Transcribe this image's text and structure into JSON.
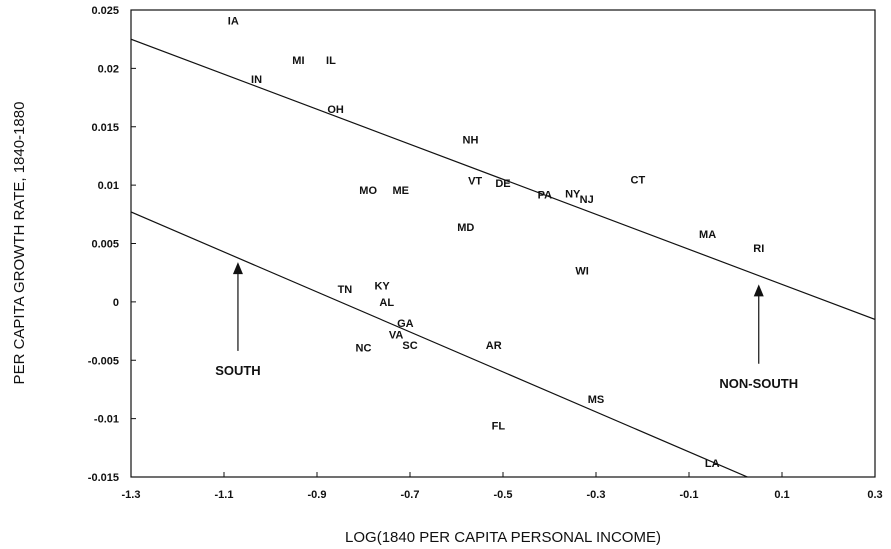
{
  "chart_data": {
    "type": "scatter",
    "title": "",
    "xlabel": "LOG(1840 PER CAPITA PERSONAL INCOME)",
    "ylabel": "PER CAPITA GROWTH RATE, 1840-1880",
    "xlim": [
      -1.3,
      0.3
    ],
    "ylim": [
      -0.015,
      0.025
    ],
    "x_ticks": [
      -1.3,
      -1.1,
      -0.9,
      -0.7,
      -0.5,
      -0.3,
      -0.1,
      0.1,
      0.3
    ],
    "x_tick_labels": [
      "-1.3",
      "-1.1",
      "-0.9",
      "-0.7",
      "-0.5",
      "-0.3",
      "-0.1",
      "0.1",
      "0.3"
    ],
    "y_ticks": [
      -0.015,
      -0.01,
      -0.005,
      0,
      0.005,
      0.01,
      0.015,
      0.02,
      0.025
    ],
    "y_tick_labels": [
      "-0.015",
      "-0.01",
      "-0.005",
      "0",
      "0.005",
      "0.01",
      "0.015",
      "0.02",
      "0.025"
    ],
    "grid": false,
    "points": [
      {
        "label": "IA",
        "x": -1.08,
        "y": 0.0241
      },
      {
        "label": "MI",
        "x": -0.94,
        "y": 0.0207
      },
      {
        "label": "IL",
        "x": -0.87,
        "y": 0.0207
      },
      {
        "label": "IN",
        "x": -1.03,
        "y": 0.0191
      },
      {
        "label": "OH",
        "x": -0.86,
        "y": 0.0165
      },
      {
        "label": "NH",
        "x": -0.57,
        "y": 0.0139
      },
      {
        "label": "VT",
        "x": -0.56,
        "y": 0.0104
      },
      {
        "label": "DE",
        "x": -0.5,
        "y": 0.0102
      },
      {
        "label": "CT",
        "x": -0.21,
        "y": 0.0105
      },
      {
        "label": "MO",
        "x": -0.79,
        "y": 0.0096
      },
      {
        "label": "ME",
        "x": -0.72,
        "y": 0.0096
      },
      {
        "label": "PA",
        "x": -0.41,
        "y": 0.0092
      },
      {
        "label": "NY",
        "x": -0.35,
        "y": 0.0093
      },
      {
        "label": "NJ",
        "x": -0.32,
        "y": 0.0088
      },
      {
        "label": "MD",
        "x": -0.58,
        "y": 0.0064
      },
      {
        "label": "MA",
        "x": -0.06,
        "y": 0.0058
      },
      {
        "label": "RI",
        "x": 0.05,
        "y": 0.0046
      },
      {
        "label": "WI",
        "x": -0.33,
        "y": 0.0027
      },
      {
        "label": "TN",
        "x": -0.84,
        "y": 0.0011
      },
      {
        "label": "KY",
        "x": -0.76,
        "y": 0.0014
      },
      {
        "label": "AL",
        "x": -0.75,
        "y": 0
      },
      {
        "label": "GA",
        "x": -0.71,
        "y": -0.0018
      },
      {
        "label": "VA",
        "x": -0.73,
        "y": -0.0028
      },
      {
        "label": "NC",
        "x": -0.8,
        "y": -0.0039
      },
      {
        "label": "SC",
        "x": -0.7,
        "y": -0.0037
      },
      {
        "label": "AR",
        "x": -0.52,
        "y": -0.0037
      },
      {
        "label": "MS",
        "x": -0.3,
        "y": -0.0083
      },
      {
        "label": "FL",
        "x": -0.51,
        "y": -0.0106
      },
      {
        "label": "LA",
        "x": -0.05,
        "y": -0.0138
      }
    ],
    "fit_lines": [
      {
        "name": "NON-SOUTH",
        "x": [
          -1.3,
          0.3
        ],
        "y": [
          0.0225,
          -0.0015
        ]
      },
      {
        "name": "SOUTH",
        "x": [
          -1.3,
          0.3
        ],
        "y": [
          0.0077,
          -0.0197
        ]
      }
    ],
    "annotations": [
      {
        "text": "SOUTH",
        "arrow_x": -1.07,
        "arrow_y_from": -0.0042,
        "arrow_y_to": 0.0034
      },
      {
        "text": "NON-SOUTH",
        "arrow_x": 0.05,
        "arrow_y_from": -0.0053,
        "arrow_y_to": 0.0015
      }
    ]
  }
}
